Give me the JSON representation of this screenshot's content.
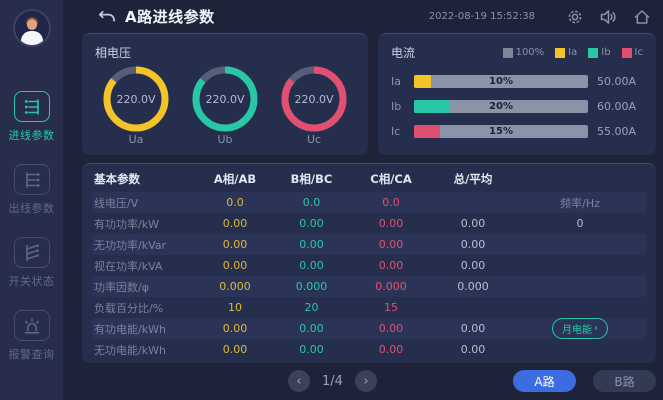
{
  "topbar": {
    "title": "A路进线参数",
    "timestamp": "2022-08-19 15:52:38"
  },
  "sidebar": {
    "items": [
      {
        "label": "进线参数",
        "icon": "incoming-line-icon",
        "active": true
      },
      {
        "label": "出线参数",
        "icon": "outgoing-line-icon",
        "active": false
      },
      {
        "label": "开关状态",
        "icon": "switch-status-icon",
        "active": false
      },
      {
        "label": "报警查询",
        "icon": "alarm-query-icon",
        "active": false
      }
    ]
  },
  "voltage_panel": {
    "title": "相电压",
    "track_color": "#575f78",
    "gauges": [
      {
        "value": "220.0V",
        "label": "Ua",
        "color": "#f2c428",
        "percent": 86
      },
      {
        "value": "220.0V",
        "label": "Ub",
        "color": "#28c7a5",
        "percent": 86
      },
      {
        "value": "220.0V",
        "label": "Uc",
        "color": "#e15071",
        "percent": 86
      }
    ]
  },
  "current_panel": {
    "title": "电流",
    "legend": [
      {
        "label": "100%",
        "color": "#7d8599"
      },
      {
        "label": "Ia",
        "color": "#f2c428"
      },
      {
        "label": "Ib",
        "color": "#28c7a5"
      },
      {
        "label": "Ic",
        "color": "#e15071"
      }
    ],
    "bars": [
      {
        "label": "Ia",
        "percent": 10,
        "percent_label": "10%",
        "value": "50.00A",
        "color": "#f2c428"
      },
      {
        "label": "Ib",
        "percent": 20,
        "percent_label": "20%",
        "value": "60.00A",
        "color": "#28c7a5"
      },
      {
        "label": "Ic",
        "percent": 15,
        "percent_label": "15%",
        "value": "55.00A",
        "color": "#e15071"
      }
    ]
  },
  "table": {
    "headers": [
      "基本参数",
      "A相/AB",
      "B相/BC",
      "C相/CA",
      "总/平均",
      ""
    ],
    "rows": [
      {
        "label": "线电压/V",
        "a": "0.0",
        "b": "0.0",
        "c": "0.0",
        "total": "",
        "extra": "频率/Hz",
        "extra_kind": "label"
      },
      {
        "label": "有功功率/kW",
        "a": "0.00",
        "b": "0.00",
        "c": "0.00",
        "total": "0.00",
        "extra": "0",
        "extra_kind": "value"
      },
      {
        "label": "无功功率/kVar",
        "a": "0.00",
        "b": "0.00",
        "c": "0.00",
        "total": "0.00",
        "extra": "",
        "extra_kind": "none"
      },
      {
        "label": "视在功率/kVA",
        "a": "0.00",
        "b": "0.00",
        "c": "0.00",
        "total": "0.00",
        "extra": "",
        "extra_kind": "none"
      },
      {
        "label": "功率因数/φ",
        "a": "0.000",
        "b": "0.000",
        "c": "0.000",
        "total": "0.000",
        "extra": "",
        "extra_kind": "none"
      },
      {
        "label": "负载百分比/%",
        "a": "10",
        "b": "20",
        "c": "15",
        "total": "",
        "extra": "",
        "extra_kind": "none"
      },
      {
        "label": "有功电能/kWh",
        "a": "0.00",
        "b": "0.00",
        "c": "0.00",
        "total": "0.00",
        "extra": "月电能",
        "extra_kind": "button"
      },
      {
        "label": "无功电能/kWh",
        "a": "0.00",
        "b": "0.00",
        "c": "0.00",
        "total": "0.00",
        "extra": "",
        "extra_kind": "none"
      }
    ]
  },
  "footer": {
    "page_indicator": "1/4",
    "route_buttons": [
      {
        "label": "A路",
        "active": true
      },
      {
        "label": "B路",
        "active": false
      }
    ]
  }
}
